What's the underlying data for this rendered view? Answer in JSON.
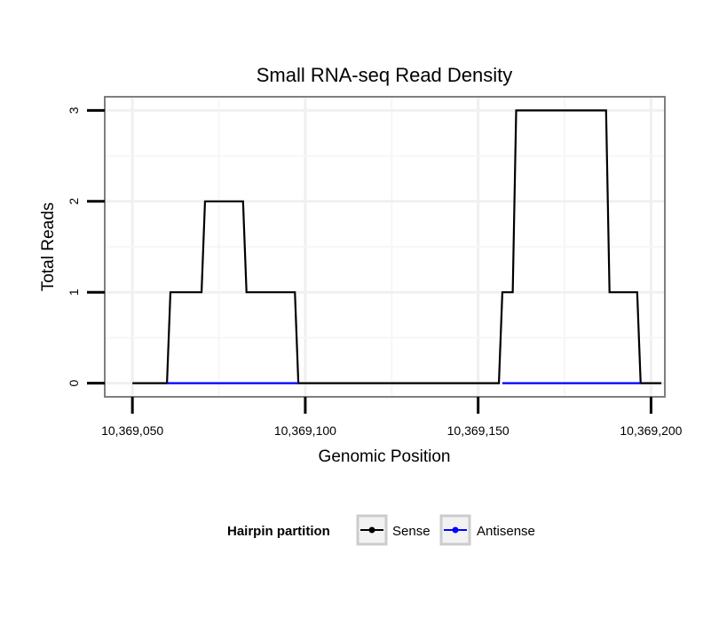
{
  "chart_data": {
    "type": "line",
    "title": "Small RNA-seq Read Density",
    "xlabel": "Genomic Position",
    "ylabel": "Total Reads",
    "xlim": [
      10369042,
      10369204
    ],
    "ylim": [
      -0.15,
      3.15
    ],
    "x_ticks": [
      10369050,
      10369100,
      10369150,
      10369200
    ],
    "x_tick_labels": [
      "10,369,050",
      "10,369,100",
      "10,369,150",
      "10,369,200"
    ],
    "y_ticks": [
      0,
      1,
      2,
      3
    ],
    "y_tick_labels": [
      "0",
      "1",
      "2",
      "3"
    ],
    "grid": true,
    "legend": {
      "title": "Hairpin partition",
      "position": "bottom",
      "entries": [
        "Sense",
        "Antisense"
      ]
    },
    "series": [
      {
        "name": "Sense",
        "color": "#000000",
        "points": [
          [
            10369050,
            0
          ],
          [
            10369060,
            0
          ],
          [
            10369061,
            1
          ],
          [
            10369070,
            1
          ],
          [
            10369071,
            2
          ],
          [
            10369082,
            2
          ],
          [
            10369083,
            1
          ],
          [
            10369097,
            1
          ],
          [
            10369098,
            0
          ],
          [
            10369156,
            0
          ],
          [
            10369157,
            1
          ],
          [
            10369160,
            1
          ],
          [
            10369161,
            3
          ],
          [
            10369187,
            3
          ],
          [
            10369188,
            1
          ],
          [
            10369196,
            1
          ],
          [
            10369197,
            0
          ],
          [
            10369203,
            0
          ]
        ]
      },
      {
        "name": "Antisense",
        "color": "#0000ff",
        "points": [
          [
            10369060,
            0
          ],
          [
            10369098,
            0
          ]
        ],
        "points2": [
          [
            10369157,
            0
          ],
          [
            10369197,
            0
          ]
        ]
      }
    ]
  }
}
